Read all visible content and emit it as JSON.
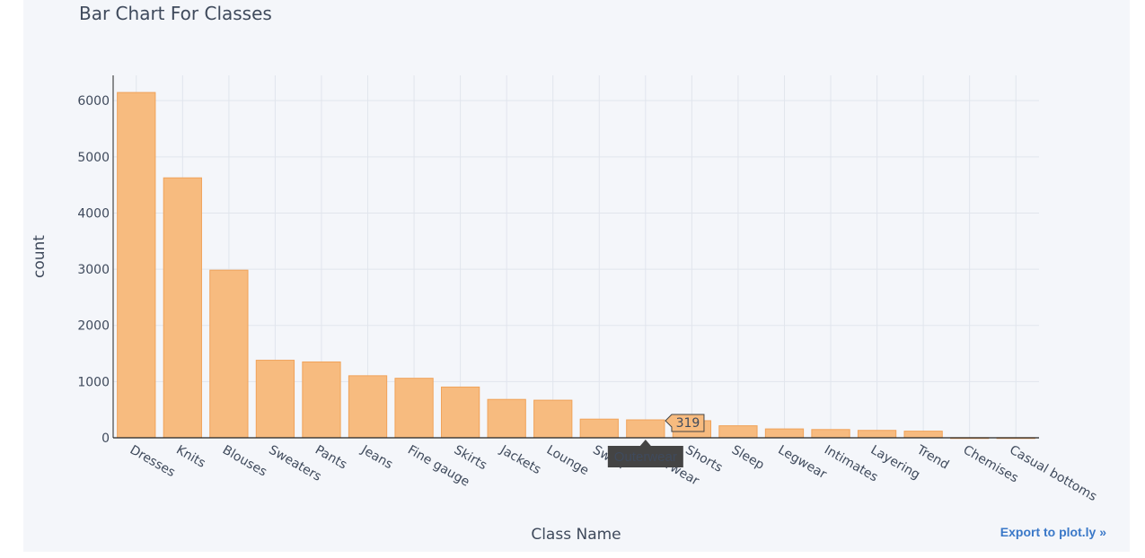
{
  "chart_data": {
    "type": "bar",
    "title": "Bar Chart For Classes",
    "xlabel": "Class Name",
    "ylabel": "count",
    "categories": [
      "Dresses",
      "Knits",
      "Blouses",
      "Sweaters",
      "Pants",
      "Jeans",
      "Fine gauge",
      "Skirts",
      "Jackets",
      "Lounge",
      "Swim",
      "Outerwear",
      "Shorts",
      "Sleep",
      "Legwear",
      "Intimates",
      "Layering",
      "Trend",
      "Chemises",
      "Casual bottoms"
    ],
    "values": [
      6145,
      4626,
      2983,
      1380,
      1350,
      1104,
      1059,
      903,
      683,
      669,
      332,
      319,
      304,
      214,
      158,
      147,
      132,
      118,
      1,
      1
    ],
    "ylim": [
      0,
      6450
    ],
    "yticks": [
      "0",
      "1000",
      "2000",
      "3000",
      "4000",
      "5000",
      "6000"
    ],
    "grid": true,
    "bar_color": "#f7bb7f",
    "bar_edge_color": "#f0a35a",
    "tooltip": {
      "category": "Outerwear",
      "value": "319"
    }
  },
  "toolbar": {
    "export_label": "Export to plot.ly »"
  }
}
